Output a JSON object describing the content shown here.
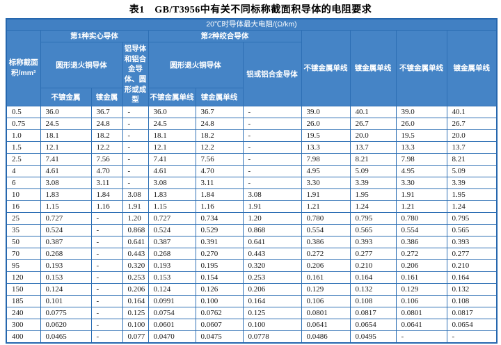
{
  "title": "表1　GB/T3956中有关不同标称截面积导体的电阻要求",
  "colors": {
    "header_bg": "#4584c6",
    "band_bg": "#4180c3",
    "border": "#2d6fb4",
    "header_text": "#ffffff",
    "body_text": "#161616"
  },
  "table": {
    "band_header": "20℃时导体最大电阻/(Ω/km)",
    "area_header": "标称截面积/mm²",
    "group1": "第1种实心导体",
    "group2": "第2种绞合导体",
    "copper_round_1": "圆形退火铜导体",
    "aluminium_1": "铝导体和铝合金导体、圆形或成型",
    "copper_round_2": "圆形退火铜导体",
    "aluminium_2": "铝或铝合金导体",
    "sub_uncoated": "不镀金属",
    "sub_coated": "镀金属",
    "sub_uncoated_wire_1": "不镀金属单线",
    "sub_coated_wire_1": "镀金属单线",
    "tall_col_8": "不镀金属单线",
    "tall_col_9": "镀金属单线",
    "tall_col_10": "不镀金属单线",
    "tall_col_11": "镀金属单线",
    "rows": [
      [
        "0.5",
        "36.0",
        "36.7",
        "-",
        "36.0",
        "36.7",
        "-",
        "39.0",
        "40.1",
        "39.0",
        "40.1"
      ],
      [
        "0.75",
        "24.5",
        "24.8",
        "-",
        "24.5",
        "24.8",
        "-",
        "26.0",
        "26.7",
        "26.0",
        "26.7"
      ],
      [
        "1.0",
        "18.1",
        "18.2",
        "-",
        "18.1",
        "18.2",
        "-",
        "19.5",
        "20.0",
        "19.5",
        "20.0"
      ],
      [
        "1.5",
        "12.1",
        "12.2",
        "-",
        "12.1",
        "12.2",
        "-",
        "13.3",
        "13.7",
        "13.3",
        "13.7"
      ],
      [
        "2.5",
        "7.41",
        "7.56",
        "-",
        "7.41",
        "7.56",
        "-",
        "7.98",
        "8.21",
        "7.98",
        "8.21"
      ],
      [
        "4",
        "4.61",
        "4.70",
        "-",
        "4.61",
        "4.70",
        "-",
        "4.95",
        "5.09",
        "4.95",
        "5.09"
      ],
      [
        "6",
        "3.08",
        "3.11",
        "-",
        "3.08",
        "3.11",
        "-",
        "3.30",
        "3.39",
        "3.30",
        "3.39"
      ],
      [
        "10",
        "1.83",
        "1.84",
        "3.08",
        "1.83",
        "1.84",
        "3.08",
        "1.91",
        "1.95",
        "1.91",
        "1.95"
      ],
      [
        "16",
        "1.15",
        "1.16",
        "1.91",
        "1.15",
        "1.16",
        "1.91",
        "1.21",
        "1.24",
        "1.21",
        "1.24"
      ],
      [
        "25",
        "0.727",
        "-",
        "1.20",
        "0.727",
        "0.734",
        "1.20",
        "0.780",
        "0.795",
        "0.780",
        "0.795"
      ],
      [
        "35",
        "0.524",
        "-",
        "0.868",
        "0.524",
        "0.529",
        "0.868",
        "0.554",
        "0.565",
        "0.554",
        "0.565"
      ],
      [
        "50",
        "0.387",
        "-",
        "0.641",
        "0.387",
        "0.391",
        "0.641",
        "0.386",
        "0.393",
        "0.386",
        "0.393"
      ],
      [
        "70",
        "0.268",
        "-",
        "0.443",
        "0.268",
        "0.270",
        "0.443",
        "0.272",
        "0.277",
        "0.272",
        "0.277"
      ],
      [
        "95",
        "0.193",
        "-",
        "0.320",
        "0.193",
        "0.195",
        "0.320",
        "0.206",
        "0.210",
        "0.206",
        "0.210"
      ],
      [
        "120",
        "0.153",
        "-",
        "0.253",
        "0.153",
        "0.154",
        "0.253",
        "0.161",
        "0.164",
        "0.161",
        "0.164"
      ],
      [
        "150",
        "0.124",
        "-",
        "0.206",
        "0.124",
        "0.126",
        "0.206",
        "0.129",
        "0.132",
        "0.129",
        "0.132"
      ],
      [
        "185",
        "0.101",
        "-",
        "0.164",
        "0.0991",
        "0.100",
        "0.164",
        "0.106",
        "0.108",
        "0.106",
        "0.108"
      ],
      [
        "240",
        "0.0775",
        "-",
        "0.125",
        "0.0754",
        "0.0762",
        "0.125",
        "0.0801",
        "0.0817",
        "0.0801",
        "0.0817"
      ],
      [
        "300",
        "0.0620",
        "-",
        "0.100",
        "0.0601",
        "0.0607",
        "0.100",
        "0.0641",
        "0.0654",
        "0.0641",
        "0.0654"
      ],
      [
        "400",
        "0.0465",
        "-",
        "0.077",
        "0.0470",
        "0.0475",
        "0.0778",
        "0.0486",
        "0.0495",
        "-",
        "-"
      ]
    ]
  }
}
